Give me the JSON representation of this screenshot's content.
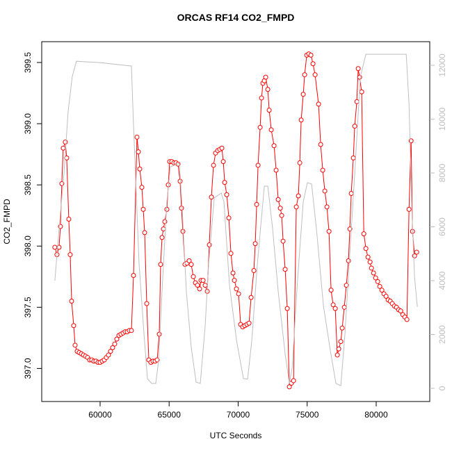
{
  "chart_data": {
    "type": "line",
    "title": "ORCAS RF14 CO2_FMPD",
    "x_label": "UTC Seconds",
    "y_label": "CO2_FMPD",
    "xlim": [
      55770,
      83880
    ],
    "ylim": [
      396.73,
      399.67
    ],
    "y2lim": [
      -490,
      12877
    ],
    "xticks": [
      60000,
      65000,
      70000,
      75000,
      80000
    ],
    "yticks": [
      {
        "value": 397,
        "label": "397.0"
      },
      {
        "value": 397.5,
        "label": "397.5"
      },
      {
        "value": 398,
        "label": "398.0"
      },
      {
        "value": 398.5,
        "label": "398.5"
      },
      {
        "value": 399,
        "label": "399.0"
      },
      {
        "value": 399.5,
        "label": "399.5"
      }
    ],
    "y2ticks": [
      0,
      2000,
      4000,
      6000,
      8000,
      10000,
      12000
    ],
    "series": [
      {
        "color": "#ff0000",
        "markers": true,
        "x": [
          56720,
          56875,
          57026,
          57127,
          57228,
          57329,
          57480,
          57581,
          57732,
          57833,
          57934,
          58085,
          58186,
          58337,
          58488,
          58639,
          58790,
          58942,
          59093,
          59244,
          59395,
          59546,
          59698,
          59849,
          60000,
          60151,
          60302,
          60454,
          60605,
          60756,
          60907,
          61058,
          61210,
          61361,
          61512,
          61663,
          61814,
          61966,
          62117,
          62268,
          62419,
          62671,
          62772,
          62873,
          63024,
          63125,
          63226,
          63377,
          63528,
          63679,
          63830,
          63982,
          64133,
          64284,
          64385,
          64486,
          64586,
          64687,
          64838,
          64939,
          65040,
          65191,
          65342,
          65494,
          65645,
          65796,
          65897,
          65998,
          66149,
          66300,
          66451,
          66602,
          66754,
          66905,
          67056,
          67207,
          67308,
          67459,
          67610,
          67762,
          67913,
          68064,
          68215,
          68366,
          68518,
          68669,
          68820,
          68921,
          69022,
          69173,
          69324,
          69475,
          69626,
          69727,
          69878,
          70030,
          70181,
          70332,
          70483,
          70634,
          70786,
          70937,
          71138,
          71239,
          71340,
          71441,
          71592,
          71693,
          71794,
          71894,
          71995,
          72146,
          72247,
          72398,
          72600,
          72751,
          72902,
          73054,
          73154,
          73255,
          73406,
          73558,
          73709,
          73860,
          74011,
          74213,
          74364,
          74465,
          74566,
          74717,
          74818,
          74969,
          75120,
          75271,
          75422,
          75574,
          75826,
          75977,
          76128,
          76279,
          76430,
          76582,
          76733,
          76884,
          77035,
          77186,
          77287,
          77438,
          77539,
          77690,
          77842,
          77993,
          78094,
          78194,
          78346,
          78446,
          78598,
          78698,
          78799,
          78950,
          79102,
          79253,
          79404,
          79555,
          79656,
          79807,
          79958,
          80110,
          80261,
          80412,
          80563,
          80714,
          80866,
          81017,
          81168,
          81319,
          81470,
          81622,
          81773,
          81924,
          82075,
          82226,
          82378,
          82529,
          82630,
          82781,
          82932
        ],
        "values": [
          397.99,
          397.93,
          397.99,
          398.16,
          398.51,
          398.8,
          398.85,
          398.72,
          398.22,
          397.93,
          397.55,
          397.35,
          397.19,
          397.14,
          397.13,
          397.12,
          397.11,
          397.1,
          397.09,
          397.07,
          397.07,
          397.06,
          397.06,
          397.05,
          397.05,
          397.06,
          397.07,
          397.09,
          397.11,
          397.14,
          397.17,
          397.2,
          397.24,
          397.27,
          397.28,
          397.29,
          397.3,
          397.3,
          397.31,
          397.31,
          397.76,
          398.89,
          398.77,
          398.63,
          398.48,
          398.3,
          398.11,
          397.53,
          397.07,
          397.05,
          397.06,
          397.06,
          397.07,
          397.28,
          397.85,
          398.07,
          398.14,
          398.2,
          398.3,
          398.5,
          398.69,
          398.69,
          398.68,
          398.68,
          398.67,
          398.53,
          398.31,
          398.12,
          397.85,
          397.86,
          397.88,
          397.85,
          397.75,
          397.7,
          397.68,
          397.65,
          397.72,
          397.72,
          397.68,
          397.63,
          398.01,
          398.4,
          398.66,
          398.76,
          398.78,
          398.79,
          398.8,
          398.69,
          398.52,
          398.42,
          398.23,
          397.94,
          397.78,
          397.72,
          397.65,
          397.61,
          397.36,
          397.34,
          397.35,
          397.36,
          397.37,
          397.58,
          397.8,
          398.02,
          398.34,
          398.66,
          398.97,
          399.21,
          399.33,
          399.35,
          399.38,
          399.28,
          399.11,
          398.95,
          398.82,
          398.62,
          398.38,
          398.31,
          398.25,
          398.04,
          397.81,
          397.49,
          396.85,
          396.88,
          396.9,
          398.32,
          398.41,
          398.68,
          399.03,
          399.24,
          399.4,
          399.56,
          399.57,
          399.56,
          399.49,
          399.4,
          399.16,
          398.83,
          398.62,
          398.45,
          398.32,
          398.12,
          397.64,
          397.52,
          397.49,
          397.11,
          397.16,
          397.22,
          397.33,
          397.5,
          397.68,
          397.88,
          398.14,
          398.43,
          398.72,
          398.98,
          399.18,
          399.45,
          399.38,
          399.26,
          398.1,
          397.98,
          397.91,
          397.87,
          397.82,
          397.78,
          397.74,
          397.71,
          397.67,
          397.64,
          397.61,
          397.59,
          397.56,
          397.55,
          397.53,
          397.51,
          397.5,
          397.48,
          397.47,
          397.44,
          397.42,
          397.4,
          398.3,
          398.86,
          398.12,
          397.92,
          397.95
        ]
      },
      {
        "color": "#bebebe",
        "axis": "y2",
        "markers": false,
        "x": [
          56724,
          57026,
          57379,
          57682,
          57984,
          58286,
          60000,
          62268,
          62419,
          62822,
          63175,
          63427,
          63730,
          64032,
          64234,
          64536,
          64838,
          65090,
          65746,
          65947,
          66250,
          66602,
          66955,
          67258,
          67610,
          67862,
          68266,
          68770,
          68971,
          69374,
          69878,
          70382,
          70685,
          70987,
          71390,
          71894,
          72146,
          72499,
          72902,
          73406,
          73709,
          73910,
          74314,
          74717,
          75019,
          75322,
          75674,
          76178,
          76682,
          77086,
          77438,
          77741,
          78043,
          78446,
          78850,
          79253,
          82176,
          82378,
          82580,
          82781,
          82982
        ],
        "values": [
          4000,
          5910,
          7970,
          10290,
          11580,
          12150,
          12100,
          11970,
          9780,
          4620,
          2040,
          360,
          180,
          180,
          1010,
          4100,
          6940,
          8230,
          8360,
          6680,
          3590,
          1520,
          230,
          180,
          2300,
          4620,
          7070,
          7250,
          6940,
          3840,
          1780,
          360,
          340,
          1780,
          4620,
          7510,
          7510,
          5910,
          3590,
          1260,
          180,
          750,
          4100,
          6940,
          7640,
          7590,
          5910,
          3070,
          1390,
          180,
          100,
          2040,
          4620,
          7970,
          11580,
          12410,
          12410,
          10550,
          6680,
          4100,
          3020
        ]
      }
    ]
  }
}
